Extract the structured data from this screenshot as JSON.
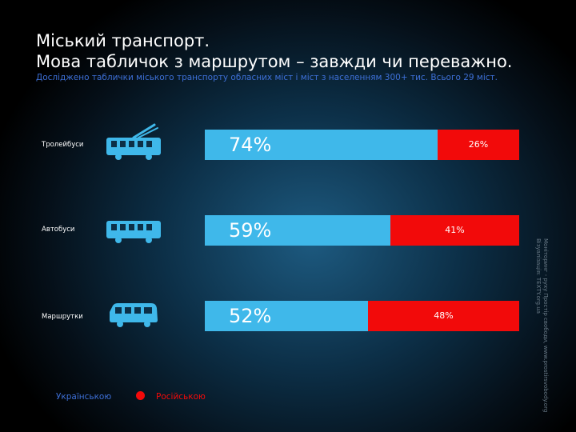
{
  "title_line1": "Міський транспорт.",
  "title_line2": "Мова табличок з маршрутом – завжди чи переважно.",
  "subtitle": "Досліджено таблички міського транспорту обласних міст  і міст з населенням 300+ тис. Всього 29 міст.",
  "colors": {
    "ukrainian": "#3fb8ea",
    "russian": "#f20a0a",
    "legend_ua_text": "#3d6fd6"
  },
  "icons": [
    "trolleybus-icon",
    "bus-icon",
    "minibus-icon"
  ],
  "legend": {
    "ukrainian": "Українською",
    "russian": "Російською"
  },
  "source_note": {
    "line1": "Моніторинг - руху Простір свободи, www.prostirsvobody.org",
    "line2": "Візуалізація: TEXTY.org.ua"
  },
  "chart_data": {
    "type": "bar",
    "stacked": true,
    "orientation": "horizontal",
    "categories": [
      "Тролейбуси",
      "Автобуси",
      "Маршрутки"
    ],
    "series": [
      {
        "name": "Українською",
        "values": [
          74,
          59,
          52
        ],
        "labels": [
          "74%",
          "59%",
          "52%"
        ]
      },
      {
        "name": "Російською",
        "values": [
          26,
          41,
          48
        ],
        "labels": [
          "26%",
          "41%",
          "48%"
        ]
      }
    ],
    "xlim": [
      0,
      100
    ],
    "grid": false,
    "legend_position": "bottom-left"
  }
}
